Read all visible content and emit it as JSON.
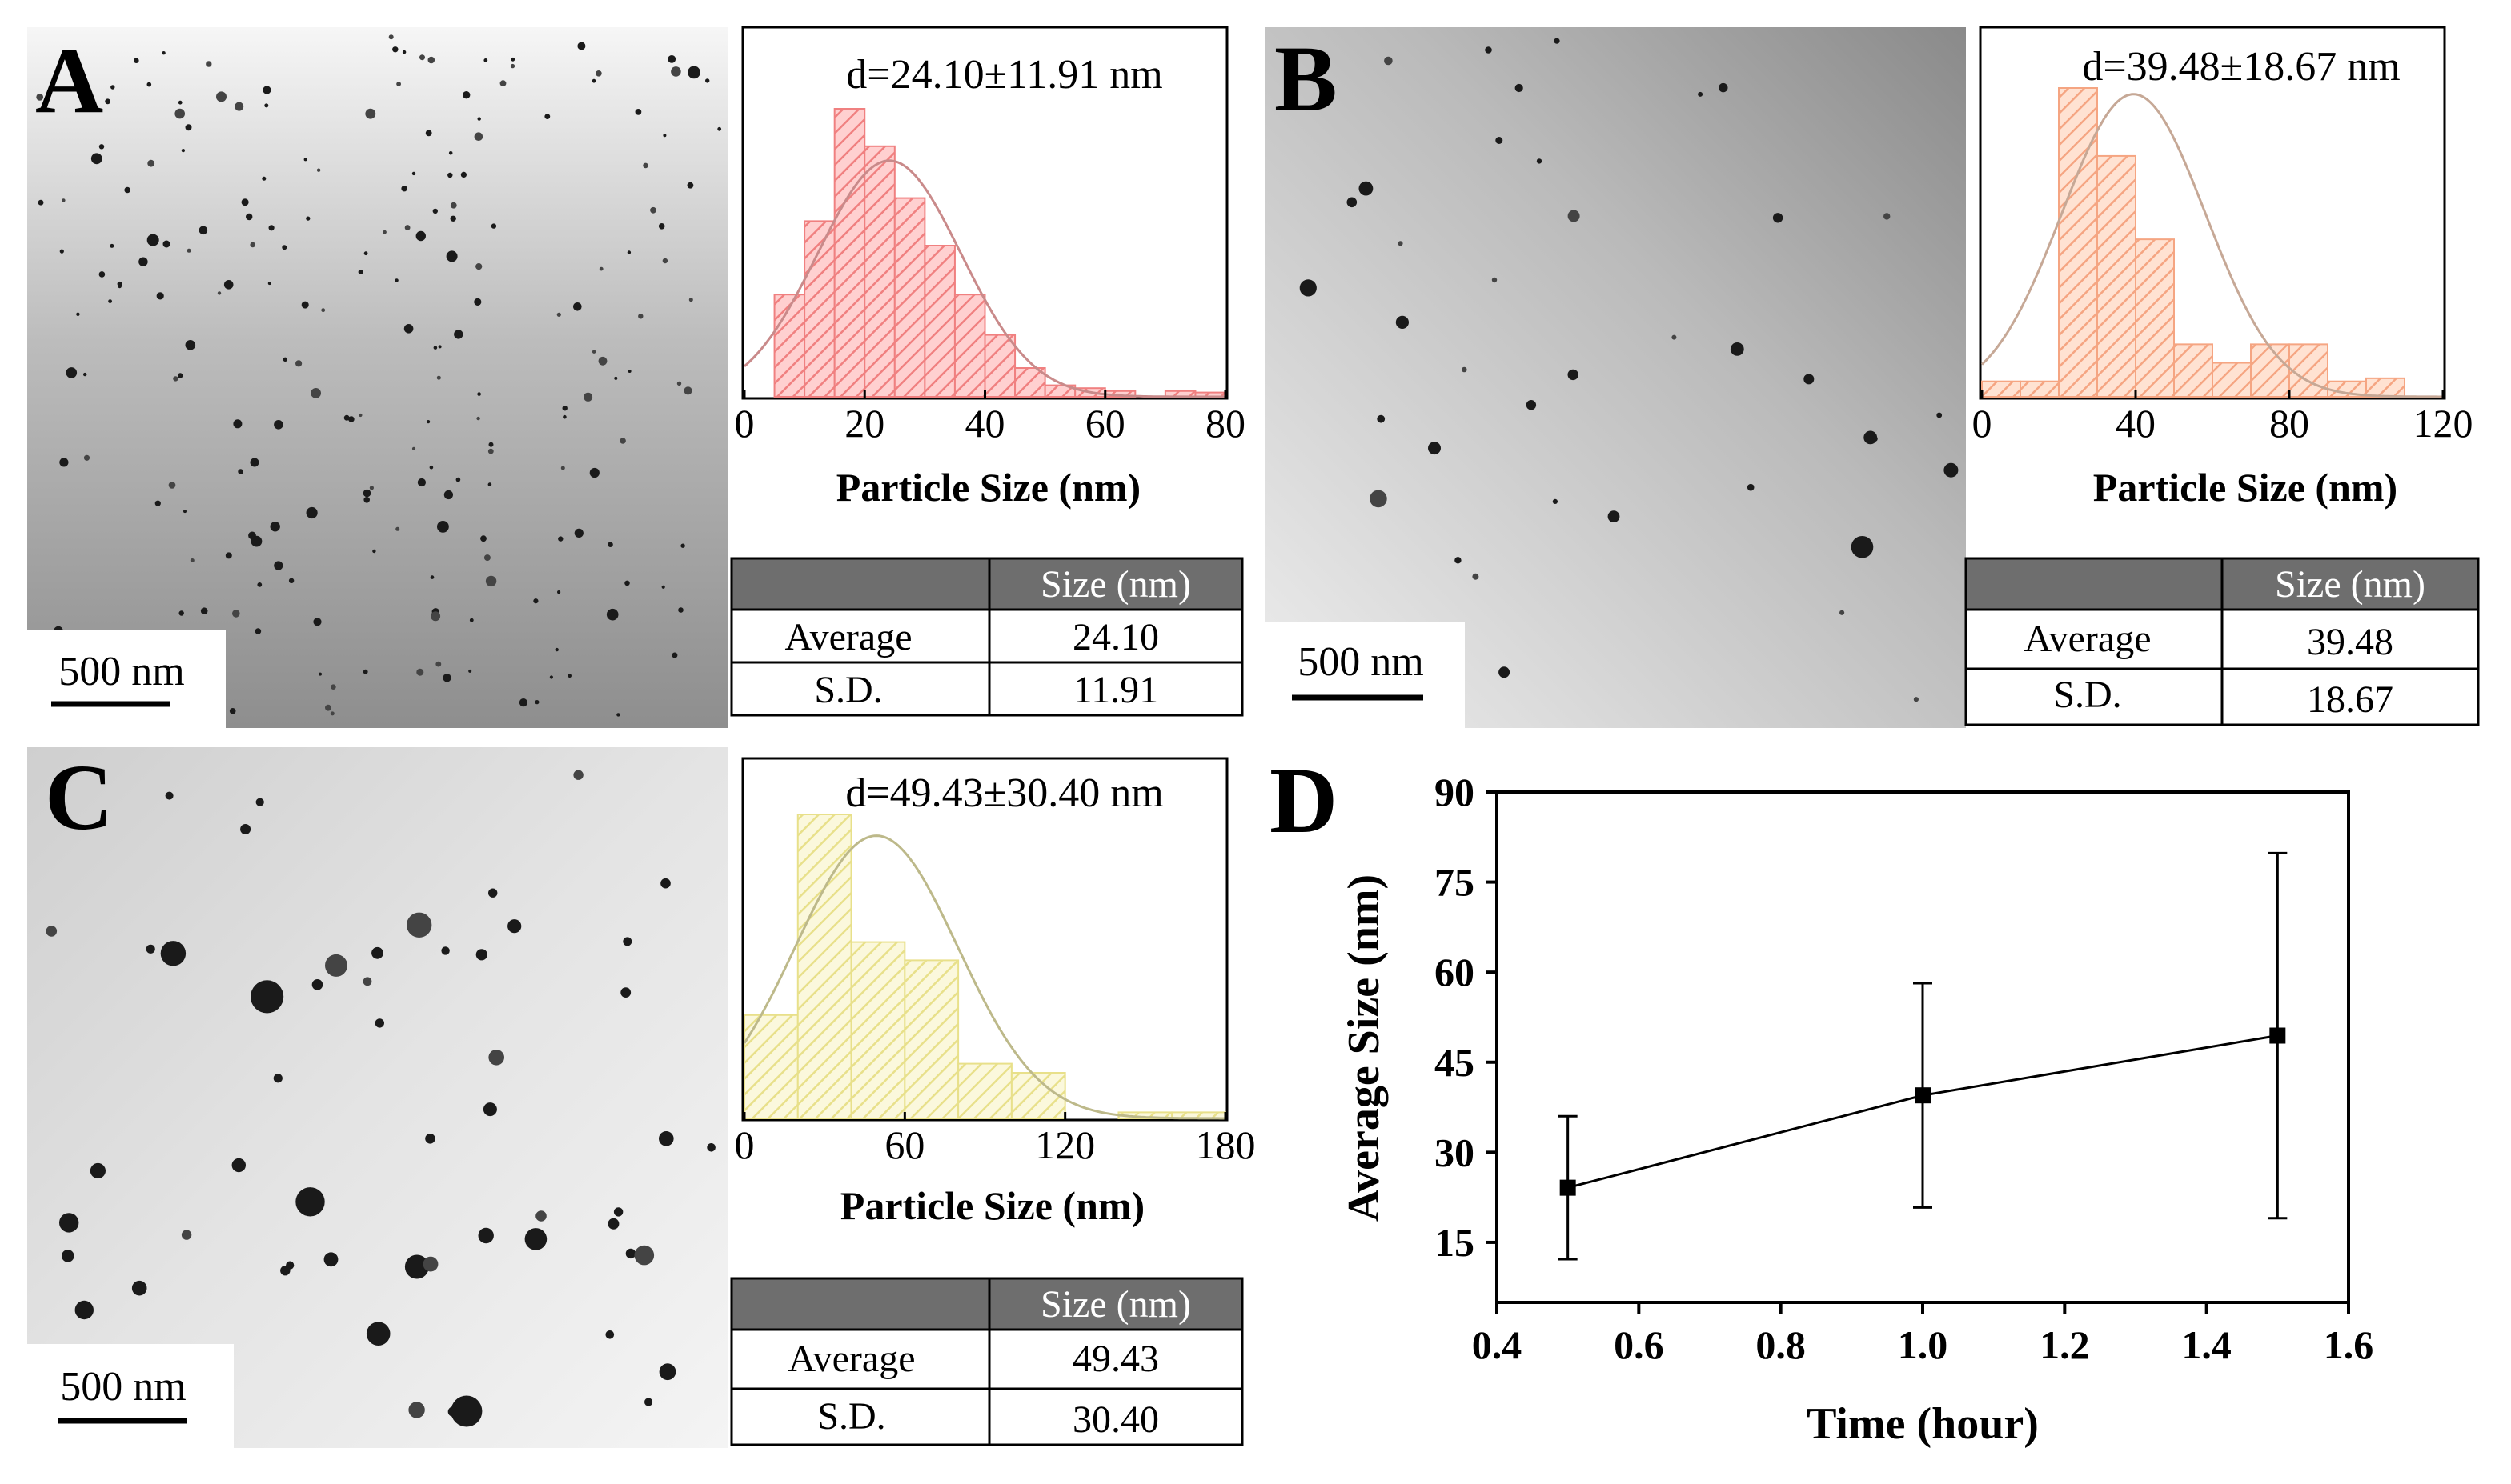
{
  "panels": {
    "A": {
      "letter": "A",
      "scale_bar": "500 nm",
      "histogram": {
        "annotation": "d=24.10±11.91 nm",
        "xlabel": "Particle Size (nm)",
        "xticks": [
          "0",
          "20",
          "40",
          "60",
          "80"
        ],
        "color": "#f08080",
        "curve_color": "#c98a8a"
      },
      "table": {
        "header_blank": "",
        "header_size": "Size (nm)",
        "row1_label": "Average",
        "row1_value": "24.10",
        "row2_label": "S.D.",
        "row2_value": "11.91"
      }
    },
    "B": {
      "letter": "B",
      "scale_bar": "500 nm",
      "histogram": {
        "annotation": "d=39.48±18.67 nm",
        "xlabel": "Particle Size (nm)",
        "xticks": [
          "0",
          "40",
          "80",
          "120"
        ],
        "color": "#f5a582",
        "curve_color": "#c6a896"
      },
      "table": {
        "header_blank": "",
        "header_size": "Size (nm)",
        "row1_label": "Average",
        "row1_value": "39.48",
        "row2_label": "S.D.",
        "row2_value": "18.67"
      }
    },
    "C": {
      "letter": "C",
      "scale_bar": "500 nm",
      "histogram": {
        "annotation": "d=49.43±30.40 nm",
        "xlabel": "Particle Size (nm)",
        "xticks": [
          "0",
          "60",
          "120",
          "180"
        ],
        "color": "#e8e08a",
        "curve_color": "#bdb98a"
      },
      "table": {
        "header_blank": "",
        "header_size": "Size (nm)",
        "row1_label": "Average",
        "row1_value": "49.43",
        "row2_label": "S.D.",
        "row2_value": "30.40"
      }
    },
    "D": {
      "letter": "D"
    }
  },
  "chart_data": [
    {
      "panel": "A",
      "type": "bar",
      "title": "d=24.10±11.91 nm",
      "xlabel": "Particle Size (nm)",
      "ylabel": "",
      "xlim": [
        0,
        80
      ],
      "bin_width": 5,
      "bin_starts": [
        5,
        10,
        15,
        20,
        25,
        30,
        35,
        40,
        45,
        50,
        55,
        60,
        65,
        70,
        75
      ],
      "values": [
        0.355,
        0.61,
        1.0,
        0.87,
        0.69,
        0.525,
        0.355,
        0.215,
        0.1,
        0.04,
        0.03,
        0.02,
        0.0,
        0.02,
        0.015
      ],
      "fit": {
        "type": "gaussian",
        "mean": 24.1,
        "sd": 11.91,
        "peak": 0.82
      }
    },
    {
      "panel": "B",
      "type": "bar",
      "title": "d=39.48±18.67 nm",
      "xlabel": "Particle Size (nm)",
      "ylabel": "",
      "xlim": [
        0,
        120
      ],
      "bin_width": 10,
      "bin_starts": [
        0,
        10,
        20,
        30,
        40,
        50,
        60,
        70,
        80,
        90,
        100
      ],
      "values": [
        0.05,
        0.05,
        1.0,
        0.78,
        0.51,
        0.17,
        0.11,
        0.17,
        0.17,
        0.05,
        0.06
      ],
      "fit": {
        "type": "gaussian",
        "mean": 39.48,
        "sd": 18.67,
        "peak": 0.98
      }
    },
    {
      "panel": "C",
      "type": "bar",
      "title": "d=49.43±30.40 nm",
      "xlabel": "Particle Size (nm)",
      "ylabel": "",
      "xlim": [
        0,
        180
      ],
      "bin_width": 20,
      "bin_starts": [
        0,
        20,
        40,
        60,
        80,
        100,
        140,
        160
      ],
      "values": [
        0.34,
        1.0,
        0.58,
        0.52,
        0.18,
        0.15,
        0.02,
        0.02
      ],
      "fit": {
        "type": "gaussian",
        "mean": 49.43,
        "sd": 30.4,
        "peak": 0.93
      }
    },
    {
      "panel": "D",
      "type": "line",
      "title": "",
      "xlabel": "Time (hour)",
      "ylabel": "Average Size (nm)",
      "x": [
        0.5,
        1.0,
        1.5
      ],
      "y": [
        24.1,
        39.48,
        49.43
      ],
      "yerr": [
        11.91,
        18.67,
        30.4
      ],
      "xlim": [
        0.4,
        1.6
      ],
      "ylim": [
        5,
        90
      ],
      "xticks": [
        "0.4",
        "0.6",
        "0.8",
        "1.0",
        "1.2",
        "1.4",
        "1.6"
      ],
      "yticks": [
        "15",
        "30",
        "45",
        "60",
        "75",
        "90"
      ]
    }
  ]
}
